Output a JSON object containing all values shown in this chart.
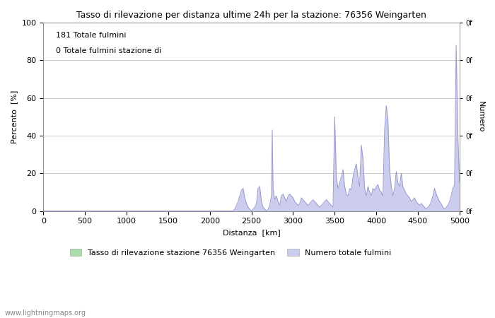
{
  "title": "Tasso di rilevazione per distanza ultime 24h per la stazione: 76356 Weingarten",
  "xlabel": "Distanza  [km]",
  "ylabel_left": "Percento  [%]",
  "ylabel_right": "Numero",
  "annotation_line1": "181 Totale fulmini",
  "annotation_line2": "0 Totale fulmini stazione di",
  "xlim": [
    0,
    5000
  ],
  "ylim_left": [
    0,
    100
  ],
  "xticks": [
    0,
    500,
    1000,
    1500,
    2000,
    2500,
    3000,
    3500,
    4000,
    4500,
    5000
  ],
  "yticks_left": [
    0,
    20,
    40,
    60,
    80,
    100
  ],
  "legend_label1": "Tasso di rilevazione stazione 76356 Weingarten",
  "legend_label2": "Numero totale fulmini",
  "legend_color1": "#aaddaa",
  "legend_color2": "#ccccee",
  "watermark": "www.lightningmaps.org",
  "line_color": "#9999cc",
  "fill_color": "#ccccee",
  "background_color": "#ffffff",
  "grid_color": "#cccccc",
  "data_x": [
    0,
    100,
    200,
    300,
    400,
    500,
    600,
    700,
    800,
    900,
    1000,
    1100,
    1200,
    1300,
    1400,
    1500,
    1600,
    1700,
    1800,
    1900,
    2000,
    2100,
    2200,
    2250,
    2280,
    2300,
    2320,
    2340,
    2360,
    2380,
    2400,
    2420,
    2440,
    2460,
    2480,
    2500,
    2520,
    2540,
    2560,
    2580,
    2600,
    2620,
    2640,
    2660,
    2680,
    2700,
    2720,
    2740,
    2750,
    2760,
    2780,
    2800,
    2820,
    2840,
    2860,
    2880,
    2900,
    2920,
    2940,
    2960,
    2980,
    3000,
    3020,
    3040,
    3060,
    3080,
    3100,
    3120,
    3140,
    3160,
    3180,
    3200,
    3220,
    3240,
    3260,
    3280,
    3300,
    3320,
    3340,
    3360,
    3380,
    3400,
    3420,
    3440,
    3460,
    3480,
    3500,
    3510,
    3520,
    3540,
    3560,
    3580,
    3600,
    3620,
    3640,
    3660,
    3680,
    3700,
    3720,
    3740,
    3760,
    3780,
    3800,
    3820,
    3840,
    3860,
    3880,
    3900,
    3920,
    3940,
    3960,
    3980,
    4000,
    4020,
    4040,
    4060,
    4080,
    4100,
    4120,
    4140,
    4160,
    4180,
    4200,
    4220,
    4240,
    4260,
    4280,
    4300,
    4320,
    4340,
    4360,
    4380,
    4400,
    4420,
    4440,
    4460,
    4480,
    4500,
    4520,
    4540,
    4560,
    4580,
    4600,
    4620,
    4640,
    4660,
    4680,
    4700,
    4720,
    4740,
    4760,
    4780,
    4800,
    4820,
    4840,
    4860,
    4880,
    4900,
    4920,
    4940,
    4960,
    4980,
    5000
  ],
  "data_y": [
    0,
    0,
    0,
    0,
    0,
    0,
    0,
    0,
    0,
    0,
    0,
    0,
    0,
    0,
    0,
    0,
    0,
    0,
    0,
    0,
    0,
    0,
    0,
    0,
    0,
    1,
    3,
    5,
    8,
    11,
    12,
    7,
    4,
    2,
    1,
    0,
    1,
    2,
    4,
    12,
    13,
    5,
    2,
    1,
    0,
    1,
    3,
    8,
    43,
    12,
    6,
    8,
    5,
    3,
    8,
    9,
    7,
    5,
    8,
    9,
    8,
    7,
    5,
    4,
    3,
    4,
    7,
    6,
    5,
    4,
    3,
    4,
    5,
    6,
    5,
    4,
    3,
    2,
    3,
    4,
    5,
    6,
    5,
    4,
    3,
    2,
    50,
    35,
    18,
    12,
    15,
    18,
    22,
    13,
    9,
    8,
    12,
    11,
    18,
    22,
    25,
    18,
    13,
    35,
    28,
    12,
    8,
    13,
    10,
    8,
    12,
    11,
    13,
    14,
    11,
    10,
    8,
    43,
    56,
    48,
    22,
    13,
    8,
    12,
    21,
    15,
    13,
    20,
    13,
    11,
    9,
    8,
    7,
    5,
    6,
    7,
    5,
    4,
    3,
    4,
    3,
    2,
    1,
    2,
    3,
    5,
    8,
    12,
    9,
    7,
    5,
    4,
    2,
    1,
    2,
    3,
    5,
    8,
    12,
    14,
    88,
    40,
    15
  ]
}
